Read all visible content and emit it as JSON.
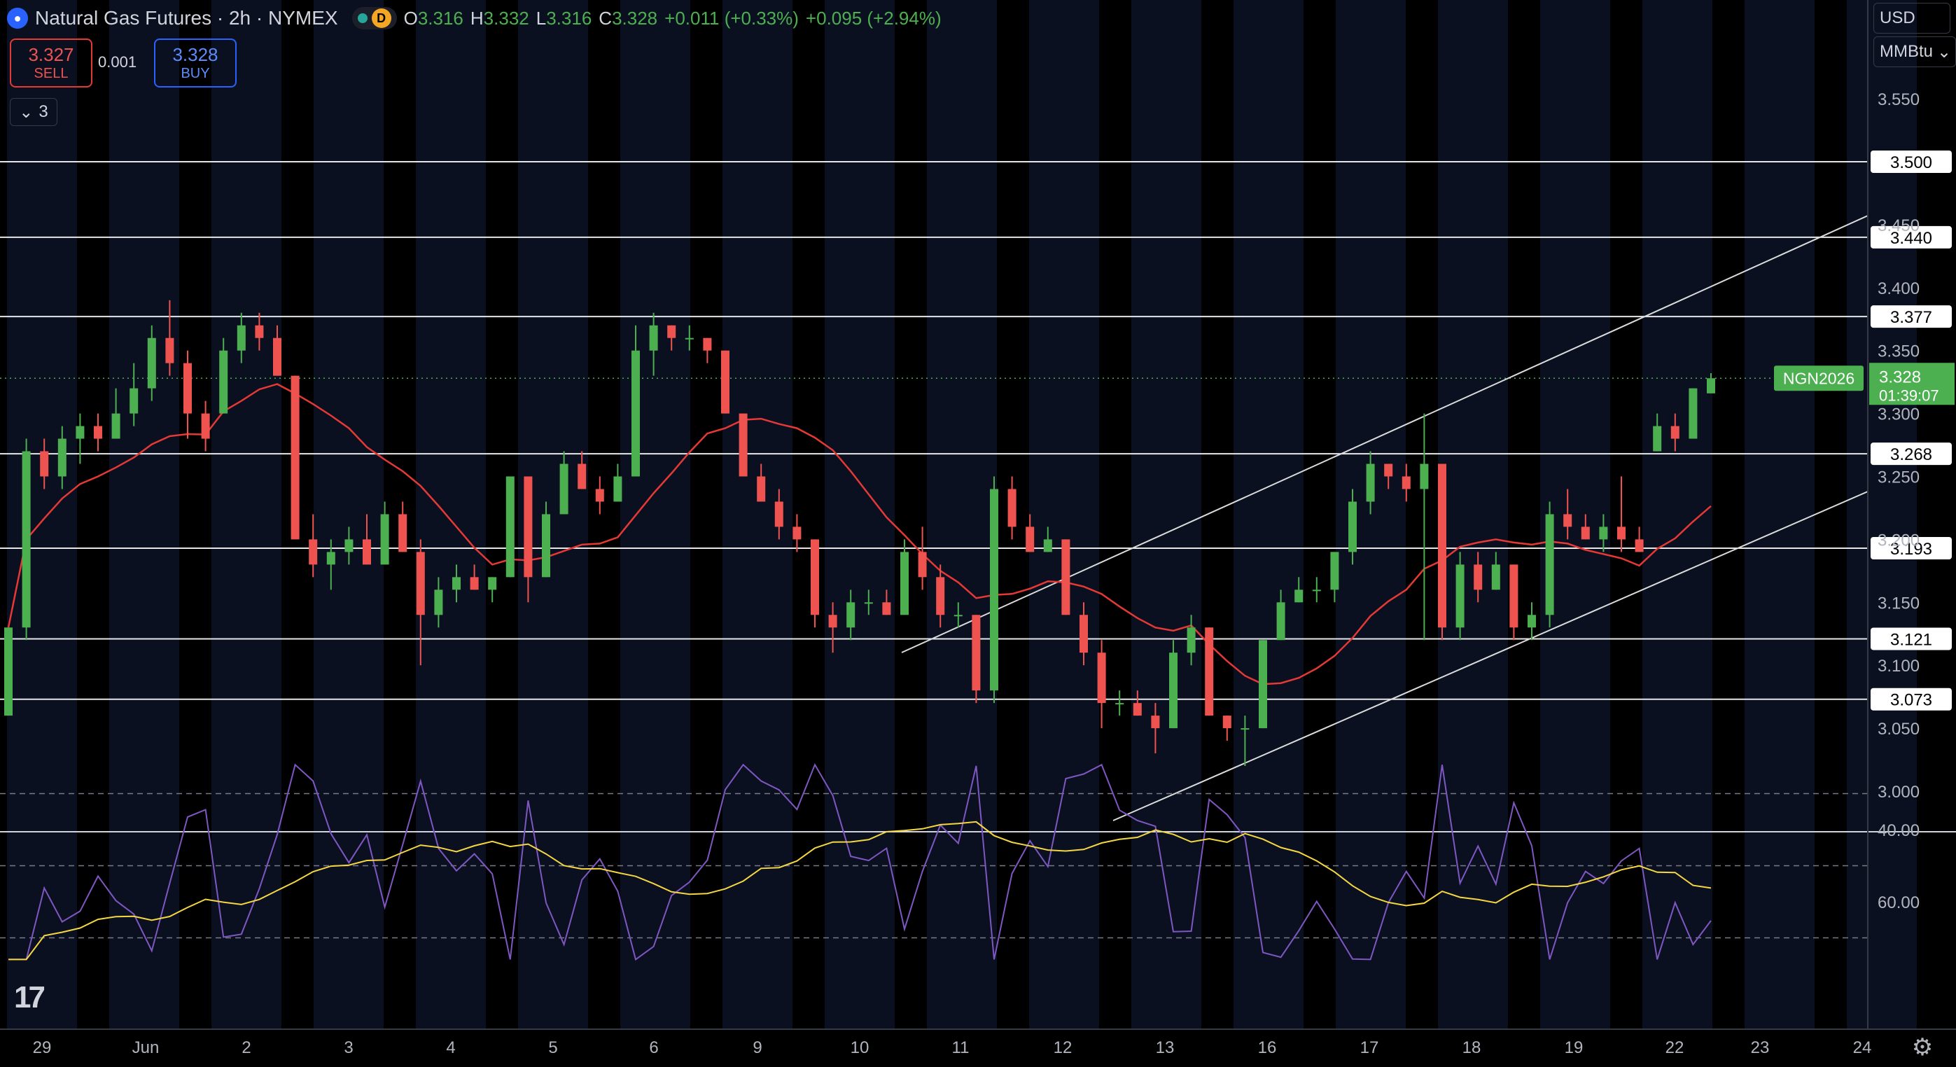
{
  "header": {
    "title": "Natural Gas Futures · 2h · NYMEX",
    "interval_badge": "D",
    "ohlc": [
      {
        "k": "O",
        "v": "3.316"
      },
      {
        "k": "H",
        "v": "3.332"
      },
      {
        "k": "L",
        "v": "3.316"
      },
      {
        "k": "C",
        "v": "3.328"
      }
    ],
    "change": "+0.011 (+0.33%)",
    "day_change": "+0.095 (+2.94%)"
  },
  "trade": {
    "sell_price": "3.327",
    "sell_label": "SELL",
    "spread": "0.001",
    "buy_price": "3.328",
    "buy_label": "BUY"
  },
  "indicators_toggle": "3",
  "scale": {
    "currency": "USD",
    "unit": "MMBtu"
  },
  "colors": {
    "background": "#000000",
    "up": "#4caf50",
    "down": "#ef5350",
    "ma": "#e53935",
    "rsi": "#7e57c2",
    "rsi_ma": "#f5d742",
    "symbol_tag": "#4caf50"
  },
  "current": {
    "symbol": "NGN2026",
    "price": "3.328",
    "countdown": "01:39:07"
  },
  "chart_data": {
    "type": "candlestick",
    "price_ticks": [
      "3.550",
      "3.450",
      "3.400",
      "3.350",
      "3.300",
      "3.250",
      "3.200",
      "3.150",
      "3.100",
      "3.050",
      "3.000"
    ],
    "horizontal_levels": [
      "3.500",
      "3.440",
      "3.377",
      "3.268",
      "3.193",
      "3.121",
      "3.073"
    ],
    "x_labels": [
      "29",
      "Jun",
      "2",
      "3",
      "4",
      "5",
      "6",
      "9",
      "10",
      "11",
      "12",
      "13",
      "16",
      "17",
      "18",
      "19",
      "22",
      "23",
      "24"
    ],
    "rsi_ticks": [
      "60.00",
      "40.00"
    ],
    "rsi_levels": [
      70,
      50,
      30
    ],
    "candles": [
      {
        "o": 3.06,
        "h": 3.13,
        "l": 3.06,
        "c": 3.13
      },
      {
        "o": 3.13,
        "h": 3.28,
        "l": 3.12,
        "c": 3.27
      },
      {
        "o": 3.27,
        "h": 3.28,
        "l": 3.24,
        "c": 3.25
      },
      {
        "o": 3.25,
        "h": 3.29,
        "l": 3.24,
        "c": 3.28
      },
      {
        "o": 3.28,
        "h": 3.3,
        "l": 3.26,
        "c": 3.29
      },
      {
        "o": 3.29,
        "h": 3.3,
        "l": 3.27,
        "c": 3.28
      },
      {
        "o": 3.28,
        "h": 3.32,
        "l": 3.28,
        "c": 3.3
      },
      {
        "o": 3.3,
        "h": 3.34,
        "l": 3.29,
        "c": 3.32
      },
      {
        "o": 3.32,
        "h": 3.37,
        "l": 3.31,
        "c": 3.36
      },
      {
        "o": 3.36,
        "h": 3.39,
        "l": 3.33,
        "c": 3.34
      },
      {
        "o": 3.34,
        "h": 3.35,
        "l": 3.28,
        "c": 3.3
      },
      {
        "o": 3.3,
        "h": 3.31,
        "l": 3.27,
        "c": 3.28
      },
      {
        "o": 3.3,
        "h": 3.36,
        "l": 3.3,
        "c": 3.35
      },
      {
        "o": 3.35,
        "h": 3.38,
        "l": 3.34,
        "c": 3.37
      },
      {
        "o": 3.37,
        "h": 3.38,
        "l": 3.35,
        "c": 3.36
      },
      {
        "o": 3.36,
        "h": 3.37,
        "l": 3.33,
        "c": 3.33
      },
      {
        "o": 3.33,
        "h": 3.33,
        "l": 3.2,
        "c": 3.2
      },
      {
        "o": 3.2,
        "h": 3.22,
        "l": 3.17,
        "c": 3.18
      },
      {
        "o": 3.18,
        "h": 3.2,
        "l": 3.16,
        "c": 3.19
      },
      {
        "o": 3.19,
        "h": 3.21,
        "l": 3.18,
        "c": 3.2
      },
      {
        "o": 3.2,
        "h": 3.22,
        "l": 3.18,
        "c": 3.18
      },
      {
        "o": 3.18,
        "h": 3.23,
        "l": 3.18,
        "c": 3.22
      },
      {
        "o": 3.22,
        "h": 3.23,
        "l": 3.19,
        "c": 3.19
      },
      {
        "o": 3.19,
        "h": 3.2,
        "l": 3.1,
        "c": 3.14
      },
      {
        "o": 3.14,
        "h": 3.17,
        "l": 3.13,
        "c": 3.16
      },
      {
        "o": 3.16,
        "h": 3.18,
        "l": 3.15,
        "c": 3.17
      },
      {
        "o": 3.17,
        "h": 3.18,
        "l": 3.16,
        "c": 3.16
      },
      {
        "o": 3.16,
        "h": 3.17,
        "l": 3.15,
        "c": 3.17
      },
      {
        "o": 3.17,
        "h": 3.25,
        "l": 3.17,
        "c": 3.25
      },
      {
        "o": 3.25,
        "h": 3.25,
        "l": 3.15,
        "c": 3.17
      },
      {
        "o": 3.17,
        "h": 3.23,
        "l": 3.17,
        "c": 3.22
      },
      {
        "o": 3.22,
        "h": 3.27,
        "l": 3.22,
        "c": 3.26
      },
      {
        "o": 3.26,
        "h": 3.27,
        "l": 3.24,
        "c": 3.24
      },
      {
        "o": 3.24,
        "h": 3.25,
        "l": 3.22,
        "c": 3.23
      },
      {
        "o": 3.23,
        "h": 3.26,
        "l": 3.23,
        "c": 3.25
      },
      {
        "o": 3.25,
        "h": 3.37,
        "l": 3.25,
        "c": 3.35
      },
      {
        "o": 3.35,
        "h": 3.38,
        "l": 3.33,
        "c": 3.37
      },
      {
        "o": 3.37,
        "h": 3.37,
        "l": 3.35,
        "c": 3.36
      },
      {
        "o": 3.36,
        "h": 3.37,
        "l": 3.35,
        "c": 3.36
      },
      {
        "o": 3.36,
        "h": 3.36,
        "l": 3.34,
        "c": 3.35
      },
      {
        "o": 3.35,
        "h": 3.35,
        "l": 3.3,
        "c": 3.3
      },
      {
        "o": 3.3,
        "h": 3.3,
        "l": 3.25,
        "c": 3.25
      },
      {
        "o": 3.25,
        "h": 3.26,
        "l": 3.23,
        "c": 3.23
      },
      {
        "o": 3.23,
        "h": 3.24,
        "l": 3.2,
        "c": 3.21
      },
      {
        "o": 3.21,
        "h": 3.22,
        "l": 3.19,
        "c": 3.2
      },
      {
        "o": 3.2,
        "h": 3.2,
        "l": 3.13,
        "c": 3.14
      },
      {
        "o": 3.14,
        "h": 3.15,
        "l": 3.11,
        "c": 3.13
      },
      {
        "o": 3.13,
        "h": 3.16,
        "l": 3.12,
        "c": 3.15
      },
      {
        "o": 3.15,
        "h": 3.16,
        "l": 3.14,
        "c": 3.15
      },
      {
        "o": 3.15,
        "h": 3.16,
        "l": 3.14,
        "c": 3.14
      },
      {
        "o": 3.14,
        "h": 3.2,
        "l": 3.14,
        "c": 3.19
      },
      {
        "o": 3.19,
        "h": 3.21,
        "l": 3.16,
        "c": 3.17
      },
      {
        "o": 3.17,
        "h": 3.18,
        "l": 3.13,
        "c": 3.14
      },
      {
        "o": 3.14,
        "h": 3.15,
        "l": 3.13,
        "c": 3.14
      },
      {
        "o": 3.14,
        "h": 3.14,
        "l": 3.07,
        "c": 3.08
      },
      {
        "o": 3.08,
        "h": 3.25,
        "l": 3.07,
        "c": 3.24
      },
      {
        "o": 3.24,
        "h": 3.25,
        "l": 3.2,
        "c": 3.21
      },
      {
        "o": 3.21,
        "h": 3.22,
        "l": 3.19,
        "c": 3.19
      },
      {
        "o": 3.19,
        "h": 3.21,
        "l": 3.19,
        "c": 3.2
      },
      {
        "o": 3.2,
        "h": 3.2,
        "l": 3.14,
        "c": 3.14
      },
      {
        "o": 3.14,
        "h": 3.15,
        "l": 3.1,
        "c": 3.11
      },
      {
        "o": 3.11,
        "h": 3.12,
        "l": 3.05,
        "c": 3.07
      },
      {
        "o": 3.07,
        "h": 3.08,
        "l": 3.06,
        "c": 3.07
      },
      {
        "o": 3.07,
        "h": 3.08,
        "l": 3.06,
        "c": 3.06
      },
      {
        "o": 3.06,
        "h": 3.07,
        "l": 3.03,
        "c": 3.05
      },
      {
        "o": 3.05,
        "h": 3.12,
        "l": 3.05,
        "c": 3.11
      },
      {
        "o": 3.11,
        "h": 3.14,
        "l": 3.1,
        "c": 3.13
      },
      {
        "o": 3.13,
        "h": 3.13,
        "l": 3.06,
        "c": 3.06
      },
      {
        "o": 3.06,
        "h": 3.06,
        "l": 3.04,
        "c": 3.05
      },
      {
        "o": 3.05,
        "h": 3.06,
        "l": 3.02,
        "c": 3.05
      },
      {
        "o": 3.05,
        "h": 3.12,
        "l": 3.05,
        "c": 3.12
      },
      {
        "o": 3.12,
        "h": 3.16,
        "l": 3.12,
        "c": 3.15
      },
      {
        "o": 3.15,
        "h": 3.17,
        "l": 3.15,
        "c": 3.16
      },
      {
        "o": 3.16,
        "h": 3.17,
        "l": 3.15,
        "c": 3.16
      },
      {
        "o": 3.16,
        "h": 3.19,
        "l": 3.15,
        "c": 3.19
      },
      {
        "o": 3.19,
        "h": 3.24,
        "l": 3.18,
        "c": 3.23
      },
      {
        "o": 3.23,
        "h": 3.27,
        "l": 3.22,
        "c": 3.26
      },
      {
        "o": 3.26,
        "h": 3.26,
        "l": 3.24,
        "c": 3.25
      },
      {
        "o": 3.25,
        "h": 3.26,
        "l": 3.23,
        "c": 3.24
      },
      {
        "o": 3.24,
        "h": 3.3,
        "l": 3.12,
        "c": 3.26
      },
      {
        "o": 3.26,
        "h": 3.26,
        "l": 3.12,
        "c": 3.13
      },
      {
        "o": 3.13,
        "h": 3.19,
        "l": 3.12,
        "c": 3.18
      },
      {
        "o": 3.18,
        "h": 3.19,
        "l": 3.15,
        "c": 3.16
      },
      {
        "o": 3.16,
        "h": 3.19,
        "l": 3.16,
        "c": 3.18
      },
      {
        "o": 3.18,
        "h": 3.18,
        "l": 3.12,
        "c": 3.13
      },
      {
        "o": 3.13,
        "h": 3.15,
        "l": 3.12,
        "c": 3.14
      },
      {
        "o": 3.14,
        "h": 3.23,
        "l": 3.13,
        "c": 3.22
      },
      {
        "o": 3.22,
        "h": 3.24,
        "l": 3.2,
        "c": 3.21
      },
      {
        "o": 3.21,
        "h": 3.22,
        "l": 3.2,
        "c": 3.2
      },
      {
        "o": 3.2,
        "h": 3.22,
        "l": 3.19,
        "c": 3.21
      },
      {
        "o": 3.21,
        "h": 3.25,
        "l": 3.19,
        "c": 3.2
      },
      {
        "o": 3.2,
        "h": 3.21,
        "l": 3.19,
        "c": 3.19
      },
      {
        "o": 3.27,
        "h": 3.3,
        "l": 3.27,
        "c": 3.29
      },
      {
        "o": 3.29,
        "h": 3.3,
        "l": 3.27,
        "c": 3.28
      },
      {
        "o": 3.28,
        "h": 3.32,
        "l": 3.28,
        "c": 3.32
      },
      {
        "o": 3.316,
        "h": 3.332,
        "l": 3.316,
        "c": 3.328
      }
    ]
  }
}
